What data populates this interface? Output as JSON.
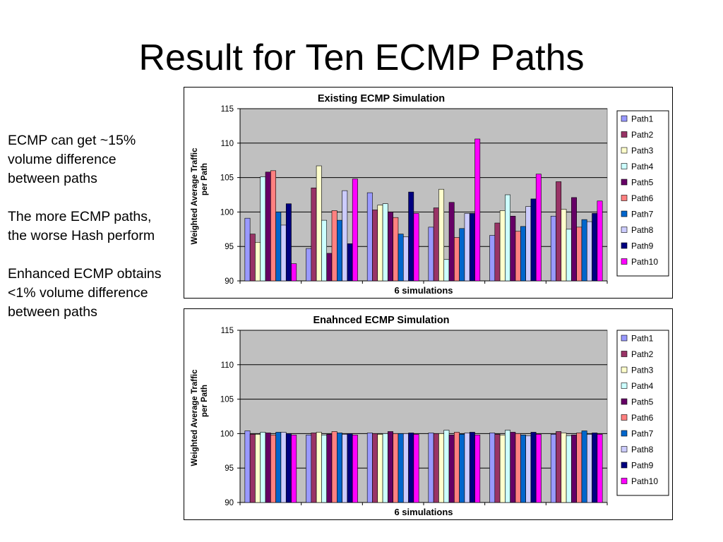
{
  "slide": {
    "title": "Result for Ten ECMP Paths",
    "bullets": [
      "ECMP can get ~15% volume difference between paths",
      "The more ECMP paths, the worse Hash perform",
      "Enhanced ECMP obtains  <1% volume difference between paths"
    ]
  },
  "colors": {
    "plot_background": "#c0c0c0",
    "series": [
      "#9999ff",
      "#993366",
      "#ffffcc",
      "#ccffff",
      "#660066",
      "#ff8080",
      "#0066cc",
      "#ccccff",
      "#000080",
      "#ff00ff"
    ]
  },
  "chart_data": [
    {
      "type": "bar",
      "title": "Existing ECMP Simulation",
      "xlabel": "6 simulations",
      "ylabel": "Weighted Average Traffic per Path",
      "ylim": [
        90,
        115
      ],
      "yticks": [
        90,
        95,
        100,
        105,
        110,
        115
      ],
      "categories": [
        "",
        "",
        "",
        "",
        "",
        ""
      ],
      "grid": "horizontal",
      "legend": "right",
      "series": [
        {
          "name": "Path1",
          "values": [
            99.1,
            94.7,
            102.8,
            97.8,
            96.6,
            99.4
          ]
        },
        {
          "name": "Path2",
          "values": [
            96.8,
            103.5,
            100.3,
            100.6,
            98.4,
            104.4
          ]
        },
        {
          "name": "Path3",
          "values": [
            95.6,
            106.7,
            101.0,
            103.3,
            100.2,
            100.4
          ]
        },
        {
          "name": "Path4",
          "values": [
            105.1,
            98.8,
            101.2,
            93.1,
            102.5,
            97.5
          ]
        },
        {
          "name": "Path5",
          "values": [
            105.8,
            94.0,
            100.0,
            101.4,
            99.4,
            102.1
          ]
        },
        {
          "name": "Path6",
          "values": [
            106.0,
            100.2,
            99.2,
            96.3,
            97.2,
            97.8
          ]
        },
        {
          "name": "Path7",
          "values": [
            100.0,
            98.8,
            96.8,
            97.6,
            97.9,
            98.9
          ]
        },
        {
          "name": "Path8",
          "values": [
            98.1,
            103.1,
            96.4,
            99.8,
            100.8,
            98.6
          ]
        },
        {
          "name": "Path9",
          "values": [
            101.2,
            95.4,
            102.9,
            99.8,
            101.9,
            99.8
          ]
        },
        {
          "name": "Path10",
          "values": [
            92.5,
            104.8,
            99.8,
            110.6,
            105.5,
            101.6
          ]
        }
      ]
    },
    {
      "type": "bar",
      "title": "Enahnced ECMP Simulation",
      "xlabel": "6 simulations",
      "ylabel": "Weighted Average Traffic per Path",
      "ylim": [
        90,
        115
      ],
      "yticks": [
        90,
        95,
        100,
        105,
        110,
        115
      ],
      "categories": [
        "",
        "",
        "",
        "",
        "",
        ""
      ],
      "grid": "horizontal",
      "legend": "right",
      "series": [
        {
          "name": "Path1",
          "values": [
            100.4,
            99.8,
            100.1,
            100.1,
            100.1,
            99.9
          ]
        },
        {
          "name": "Path2",
          "values": [
            99.9,
            100.1,
            100.0,
            100.0,
            99.9,
            100.3
          ]
        },
        {
          "name": "Path3",
          "values": [
            99.9,
            100.2,
            99.9,
            100.0,
            99.8,
            100.1
          ]
        },
        {
          "name": "Path4",
          "values": [
            100.2,
            99.8,
            100.0,
            100.5,
            100.5,
            99.7
          ]
        },
        {
          "name": "Path5",
          "values": [
            100.1,
            99.9,
            100.3,
            99.8,
            100.2,
            99.8
          ]
        },
        {
          "name": "Path6",
          "values": [
            99.8,
            100.3,
            100.0,
            100.2,
            100.0,
            100.1
          ]
        },
        {
          "name": "Path7",
          "values": [
            100.2,
            100.1,
            100.0,
            99.9,
            99.8,
            100.4
          ]
        },
        {
          "name": "Path8",
          "values": [
            100.2,
            99.9,
            100.0,
            100.1,
            99.7,
            99.9
          ]
        },
        {
          "name": "Path9",
          "values": [
            100.0,
            100.0,
            100.1,
            100.2,
            100.2,
            100.1
          ]
        },
        {
          "name": "Path10",
          "values": [
            99.8,
            99.8,
            99.9,
            99.8,
            99.9,
            99.9
          ]
        }
      ]
    }
  ]
}
